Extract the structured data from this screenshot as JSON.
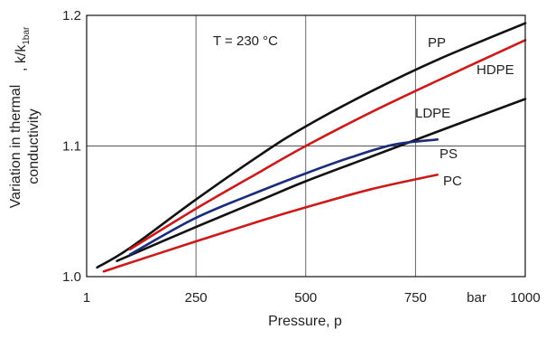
{
  "chart_data": {
    "type": "line",
    "xlabel": "Pressure, p",
    "ylabel_line1": "Variation in thermal",
    "ylabel_line2": "conductivity",
    "ylabel_ratio": ", k/k",
    "ylabel_sub": "1bar",
    "xlim": [
      1,
      1000
    ],
    "ylim": [
      1.0,
      1.2
    ],
    "x_ticks": [
      {
        "value": 1,
        "label": "1"
      },
      {
        "value": 250,
        "label": "250"
      },
      {
        "value": 500,
        "label": "500"
      },
      {
        "value": 750,
        "label": "750"
      },
      {
        "value": 1000,
        "label": "1000"
      }
    ],
    "x_unit_label": "bar",
    "y_ticks": [
      {
        "value": 1.0,
        "label": "1.0"
      },
      {
        "value": 1.1,
        "label": "1.1"
      },
      {
        "value": 1.2,
        "label": "1.2"
      }
    ],
    "grid": true,
    "annotation": "T = 230 °C",
    "series": [
      {
        "name": "PP",
        "color": "#111111",
        "x": [
          25,
          100,
          250,
          400,
          500,
          650,
          800,
          1000
        ],
        "y": [
          1.007,
          1.022,
          1.059,
          1.094,
          1.115,
          1.142,
          1.166,
          1.194
        ]
      },
      {
        "name": "HDPE",
        "color": "#cc1a1a",
        "x": [
          100,
          250,
          400,
          500,
          650,
          800,
          1000
        ],
        "y": [
          1.021,
          1.052,
          1.081,
          1.1,
          1.126,
          1.15,
          1.181
        ]
      },
      {
        "name": "LDPE",
        "color": "#111111",
        "x": [
          70,
          250,
          400,
          500,
          650,
          800,
          1000
        ],
        "y": [
          1.012,
          1.038,
          1.059,
          1.073,
          1.092,
          1.111,
          1.136
        ]
      },
      {
        "name": "PS",
        "color": "#1a2d7a",
        "x": [
          100,
          250,
          400,
          500,
          600,
          700,
          800
        ],
        "y": [
          1.017,
          1.045,
          1.066,
          1.079,
          1.091,
          1.101,
          1.105
        ]
      },
      {
        "name": "PC",
        "color": "#cc1a1a",
        "x": [
          40,
          250,
          400,
          500,
          650,
          800
        ],
        "y": [
          1.004,
          1.027,
          1.043,
          1.053,
          1.067,
          1.078
        ]
      }
    ]
  }
}
